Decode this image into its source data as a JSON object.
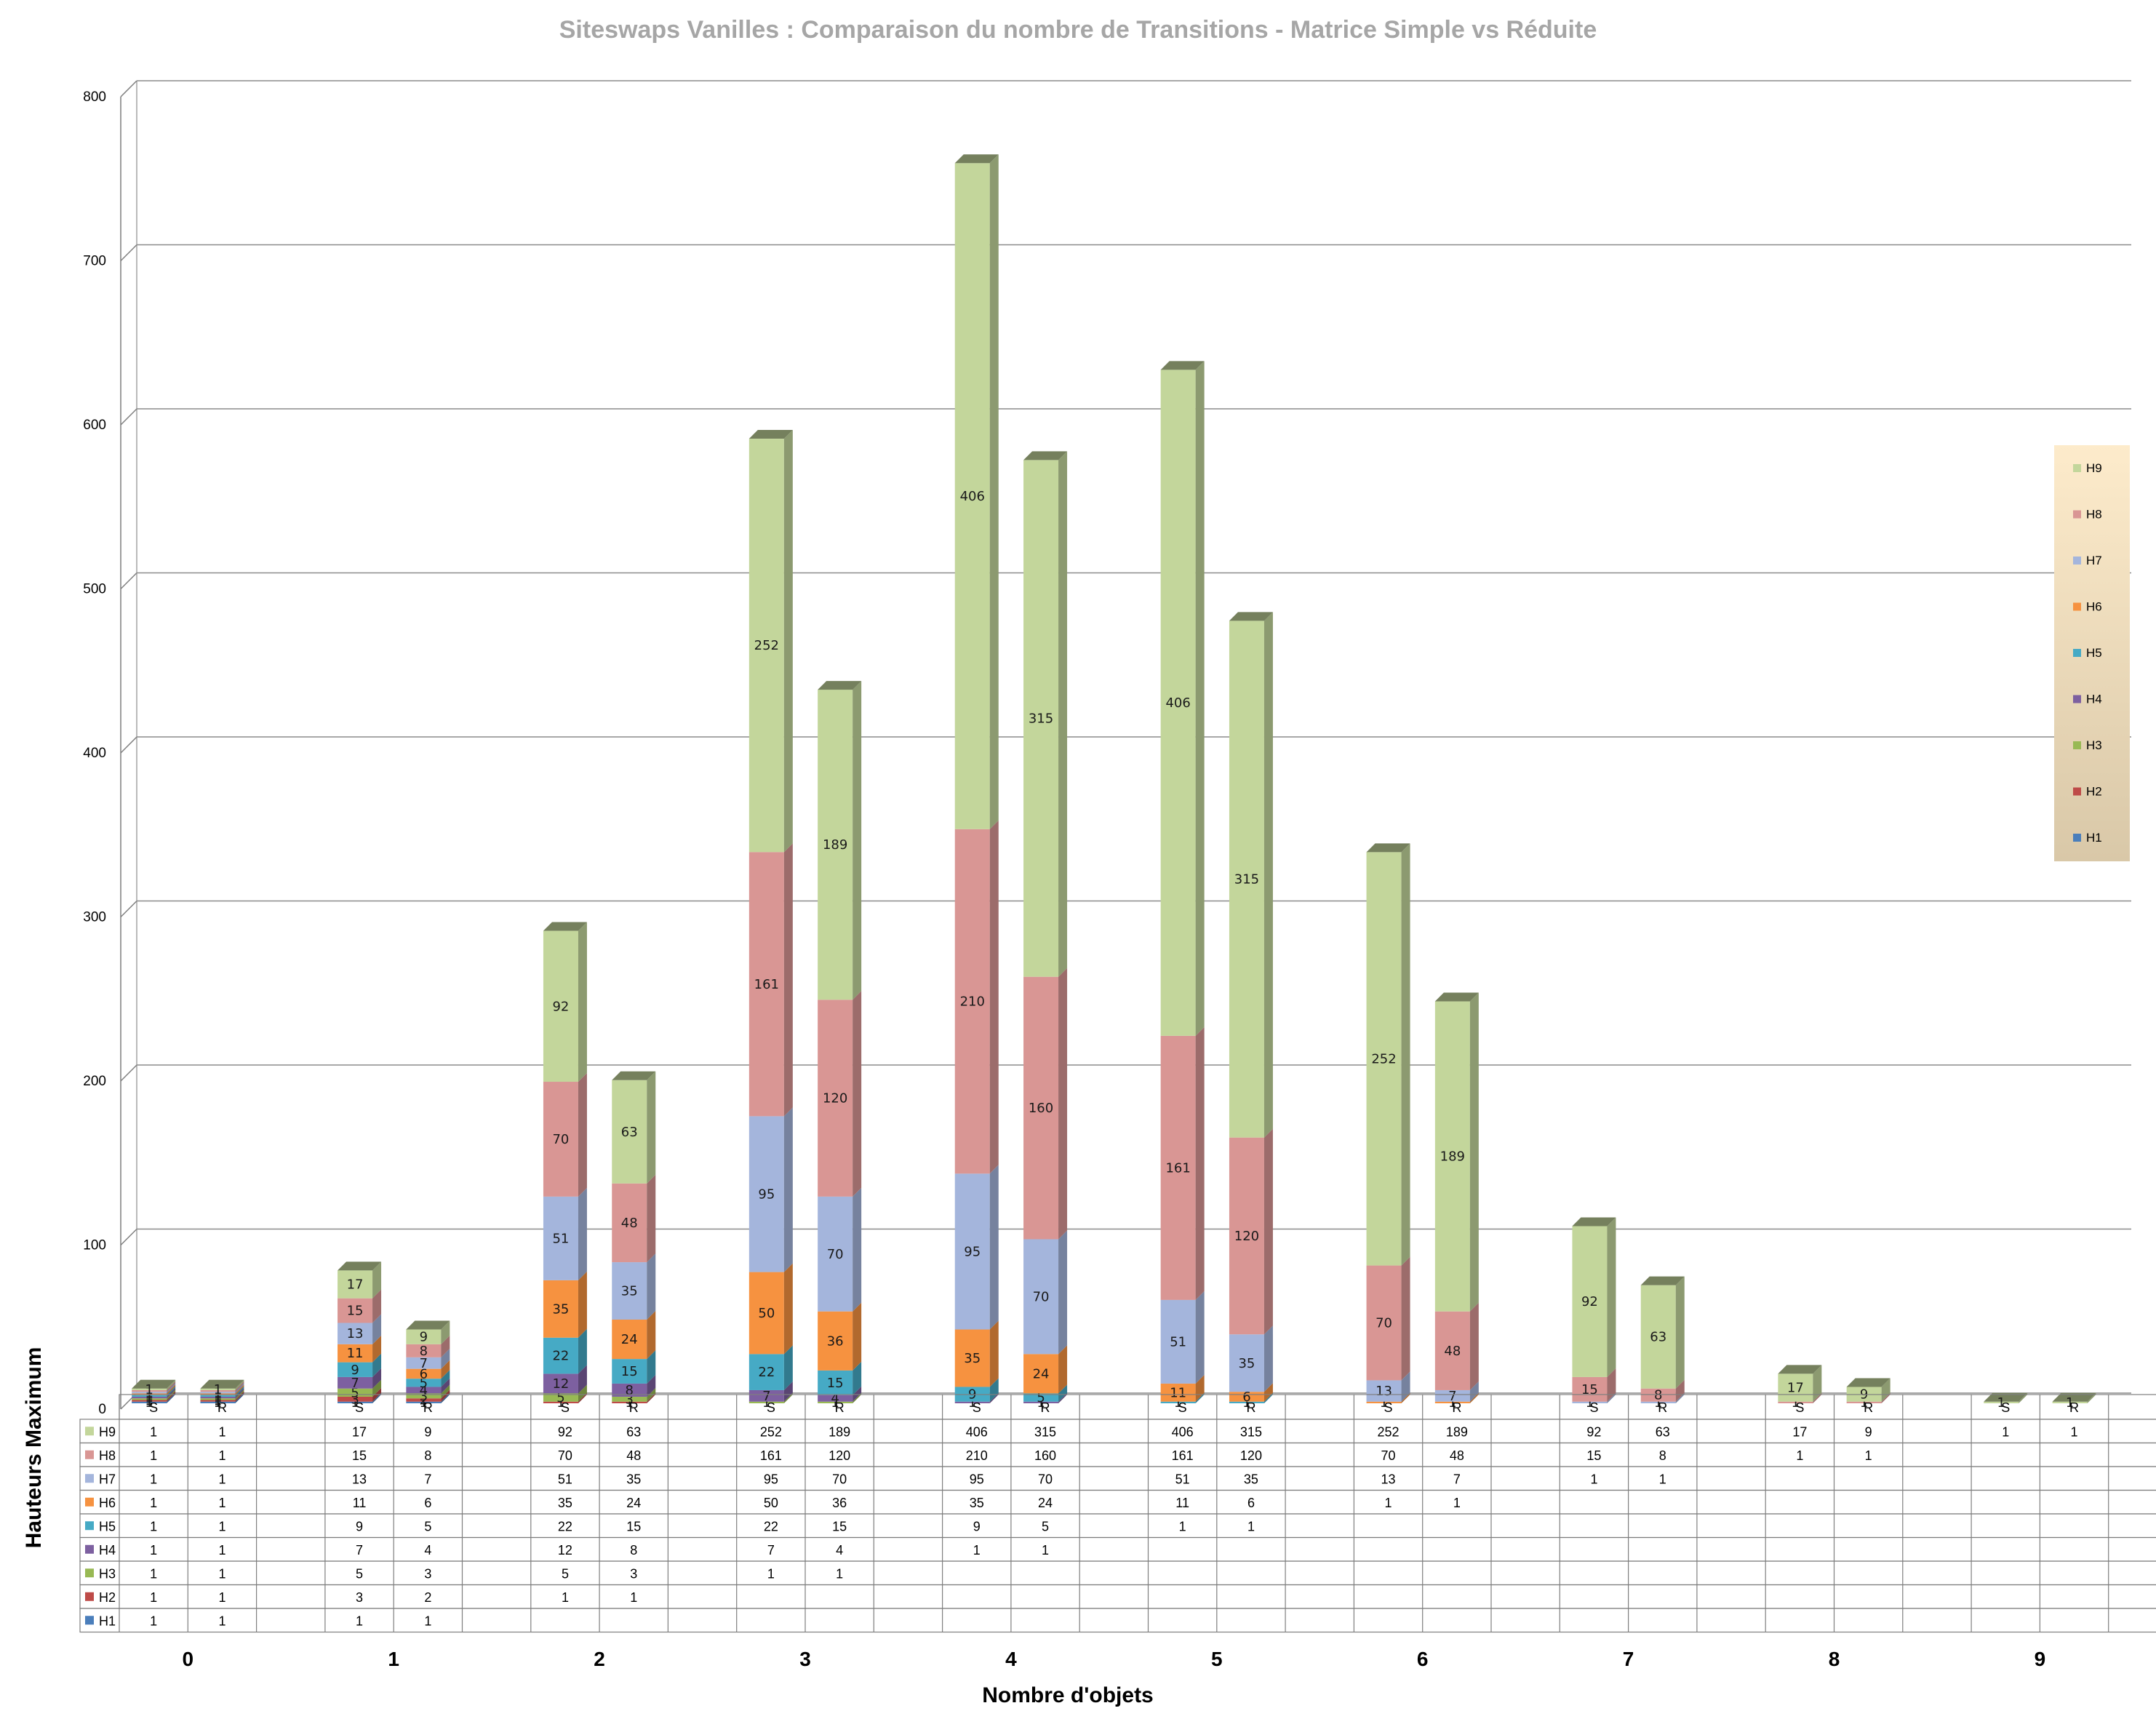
{
  "chart_data": {
    "type": "bar",
    "stacked": true,
    "title": "Siteswaps Vanilles : Comparaison du nombre de Transitions  -  Matrice Simple vs Réduite",
    "xlabel": "Nombre d'objets",
    "ylabel": "Hauteurs Maximum",
    "ylim": [
      0,
      800
    ],
    "yticks": [
      0,
      100,
      200,
      300,
      400,
      500,
      600,
      700,
      800
    ],
    "grid": true,
    "legend_position": "right",
    "groups": [
      "0",
      "1",
      "2",
      "3",
      "4",
      "5",
      "6",
      "7",
      "8",
      "9"
    ],
    "subcategories": [
      "S",
      "R"
    ],
    "series": [
      {
        "name": "H1",
        "color": "#4a7ebb",
        "values": [
          [
            1,
            1
          ],
          [
            1,
            1
          ],
          [
            null,
            null
          ],
          [
            null,
            null
          ],
          [
            null,
            null
          ],
          [
            null,
            null
          ],
          [
            null,
            null
          ],
          [
            null,
            null
          ],
          [
            null,
            null
          ],
          [
            null,
            null
          ]
        ]
      },
      {
        "name": "H2",
        "color": "#be4b48",
        "values": [
          [
            1,
            1
          ],
          [
            3,
            2
          ],
          [
            1,
            1
          ],
          [
            null,
            null
          ],
          [
            null,
            null
          ],
          [
            null,
            null
          ],
          [
            null,
            null
          ],
          [
            null,
            null
          ],
          [
            null,
            null
          ],
          [
            null,
            null
          ]
        ]
      },
      {
        "name": "H3",
        "color": "#98b954",
        "values": [
          [
            1,
            1
          ],
          [
            5,
            3
          ],
          [
            5,
            3
          ],
          [
            1,
            1
          ],
          [
            null,
            null
          ],
          [
            null,
            null
          ],
          [
            null,
            null
          ],
          [
            null,
            null
          ],
          [
            null,
            null
          ],
          [
            null,
            null
          ]
        ]
      },
      {
        "name": "H4",
        "color": "#7d60a0",
        "values": [
          [
            1,
            1
          ],
          [
            7,
            4
          ],
          [
            12,
            8
          ],
          [
            7,
            4
          ],
          [
            1,
            1
          ],
          [
            null,
            null
          ],
          [
            null,
            null
          ],
          [
            null,
            null
          ],
          [
            null,
            null
          ],
          [
            null,
            null
          ]
        ]
      },
      {
        "name": "H5",
        "color": "#46aac5",
        "values": [
          [
            1,
            1
          ],
          [
            9,
            5
          ],
          [
            22,
            15
          ],
          [
            22,
            15
          ],
          [
            9,
            5
          ],
          [
            1,
            1
          ],
          [
            null,
            null
          ],
          [
            null,
            null
          ],
          [
            null,
            null
          ],
          [
            null,
            null
          ]
        ]
      },
      {
        "name": "H6",
        "color": "#f69240",
        "values": [
          [
            1,
            1
          ],
          [
            11,
            6
          ],
          [
            35,
            24
          ],
          [
            50,
            36
          ],
          [
            35,
            24
          ],
          [
            11,
            6
          ],
          [
            1,
            1
          ],
          [
            null,
            null
          ],
          [
            null,
            null
          ],
          [
            null,
            null
          ]
        ]
      },
      {
        "name": "H7",
        "color": "#a4b5dc",
        "values": [
          [
            1,
            1
          ],
          [
            13,
            7
          ],
          [
            51,
            35
          ],
          [
            95,
            70
          ],
          [
            95,
            70
          ],
          [
            51,
            35
          ],
          [
            13,
            7
          ],
          [
            1,
            1
          ],
          [
            null,
            null
          ],
          [
            null,
            null
          ]
        ]
      },
      {
        "name": "H8",
        "color": "#d99694",
        "values": [
          [
            1,
            1
          ],
          [
            15,
            8
          ],
          [
            70,
            48
          ],
          [
            161,
            120
          ],
          [
            210,
            160
          ],
          [
            161,
            120
          ],
          [
            70,
            48
          ],
          [
            15,
            8
          ],
          [
            1,
            1
          ],
          [
            null,
            null
          ]
        ]
      },
      {
        "name": "H9",
        "color": "#c3d69b",
        "values": [
          [
            1,
            1
          ],
          [
            17,
            9
          ],
          [
            92,
            63
          ],
          [
            252,
            189
          ],
          [
            406,
            315
          ],
          [
            406,
            315
          ],
          [
            252,
            189
          ],
          [
            92,
            63
          ],
          [
            17,
            9
          ],
          [
            1,
            1
          ]
        ]
      }
    ]
  }
}
